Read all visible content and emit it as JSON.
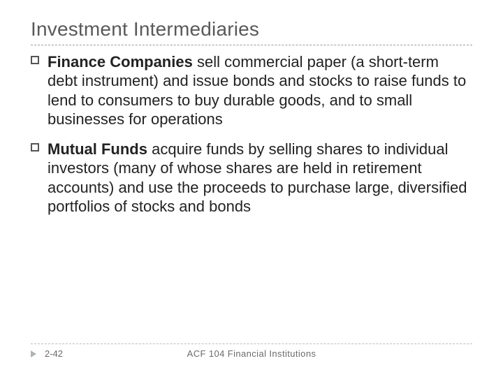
{
  "title": "Investment Intermediaries",
  "colors": {
    "title": "#595959",
    "body_text": "#222222",
    "dash_line": "#9b9b9b",
    "footer_text": "#6b6b6b",
    "footer_marker": "#aeb3b6",
    "background": "#ffffff"
  },
  "typography": {
    "title_fontsize_pt": 21,
    "body_fontsize_pt": 16,
    "footer_fontsize_pt": 10,
    "font_family": "Arial"
  },
  "bullets": [
    {
      "lead": "Finance Companies",
      "rest": " sell commercial paper (a short-term debt instrument) and issue bonds and stocks to raise funds to lend to consumers to buy durable goods, and to small businesses for operations"
    },
    {
      "lead": "Mutual Funds",
      "rest": " acquire funds by selling shares to individual investors (many of whose shares are held in retirement accounts) and use the proceeds to purchase large, diversified portfolios of stocks and bonds"
    }
  ],
  "footer": {
    "page": "2-42",
    "course": "ACF 104 Financial  Institutions"
  }
}
